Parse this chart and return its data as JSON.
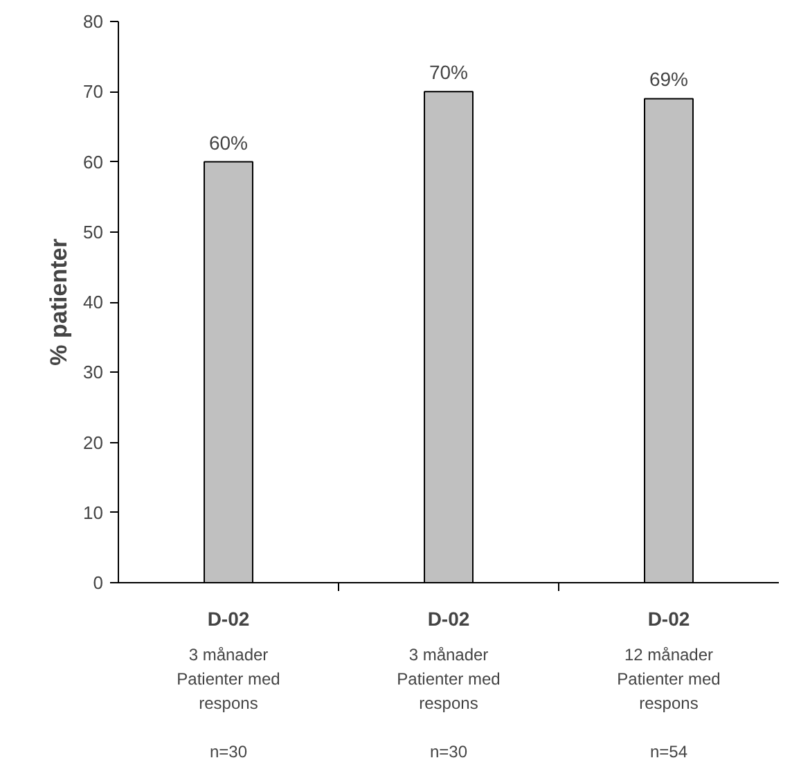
{
  "chart_data": {
    "type": "bar",
    "ylabel": "% patienter",
    "categories": [
      "D-02\n3 månader\nPatienter med\nrespons\n\nn=30",
      "D-02\n3 månader\nPatienter med\nrespons\n\nn=30",
      "D-02\n12 månader\nPatienter med\nrespons\n\nn=54"
    ],
    "values": [
      60,
      70,
      69
    ],
    "value_labels": [
      "60%",
      "70%",
      "69%"
    ],
    "color": "#c0c0c0",
    "ylim": [
      0,
      80
    ],
    "yticks": [
      0,
      10,
      20,
      30,
      40,
      50,
      60,
      70,
      80
    ],
    "grid": false
  }
}
